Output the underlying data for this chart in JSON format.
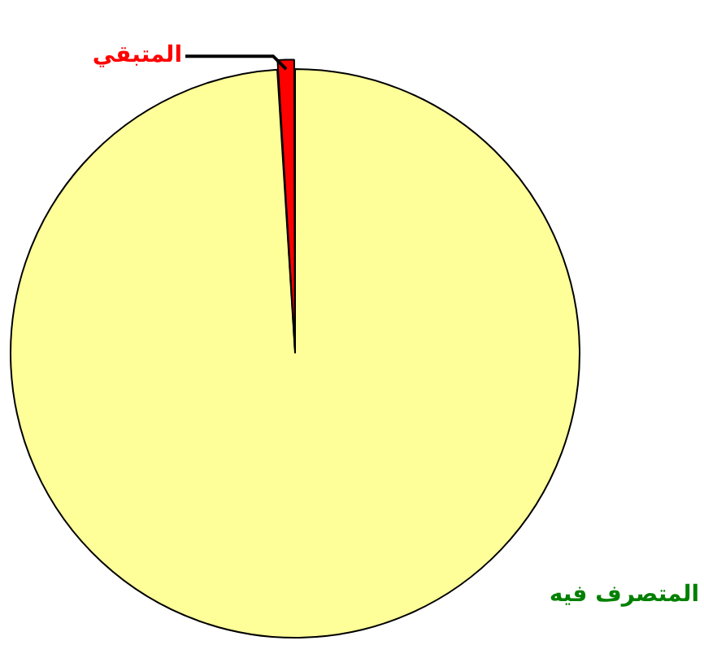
{
  "chart_data": {
    "type": "pie",
    "categories": [
      "المتصرف فيه",
      "المتبقي"
    ],
    "values": [
      99,
      1
    ],
    "colors": [
      "#ffff99",
      "#ff0000"
    ]
  }
}
